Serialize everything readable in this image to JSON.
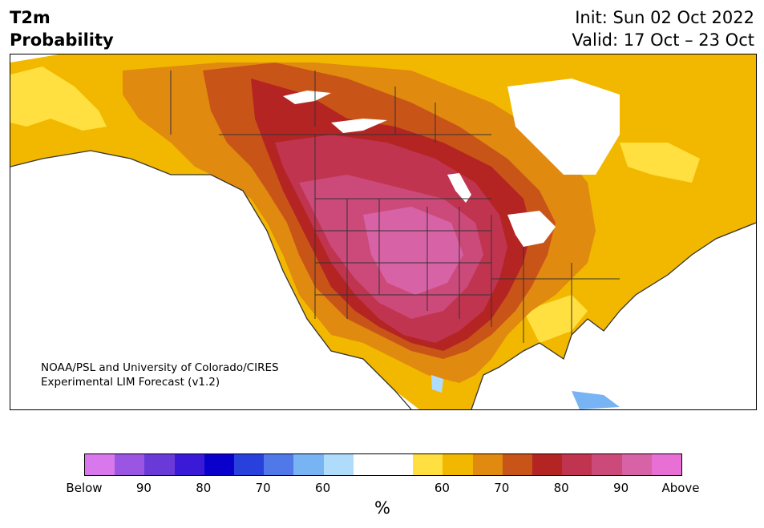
{
  "header": {
    "title_line1": "T2m",
    "title_line2": "Probability",
    "init_line": "Init: Sun 02 Oct 2022",
    "valid_line": "Valid: 17 Oct – 23 Oct"
  },
  "map": {
    "credit_line1": "NOAA/PSL and University of Colorado/CIRES",
    "credit_line2": "Experimental LIM Forecast (v1.2)"
  },
  "colorbar": {
    "colors": [
      "#d878ec",
      "#9a55e2",
      "#6a3ad8",
      "#3a1ad6",
      "#0a00cc",
      "#2840dc",
      "#5078e8",
      "#78b4f4",
      "#b0dcfc",
      "#ffffff",
      "#ffffff",
      "#ffe040",
      "#f2b800",
      "#e08a10",
      "#c85418",
      "#b42422",
      "#c03450",
      "#cc4a7a",
      "#d862a6",
      "#e870d4"
    ],
    "tick_labels": [
      "Below",
      "90",
      "80",
      "70",
      "60",
      "60",
      "70",
      "80",
      "90",
      "Above"
    ],
    "unit_label": "%"
  }
}
